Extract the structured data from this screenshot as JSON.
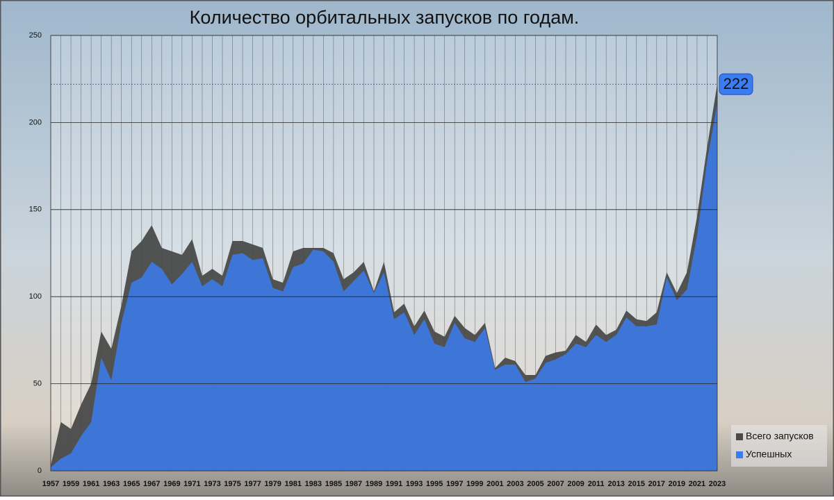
{
  "chart_data": {
    "type": "area",
    "title": "Количество орбитальных запусков по годам.",
    "categories": [
      "1957",
      null,
      "1959",
      null,
      "1961",
      null,
      "1963",
      null,
      "1965",
      null,
      "1967",
      null,
      "1969",
      null,
      "1971",
      null,
      "1973",
      null,
      "1975",
      null,
      "1977",
      null,
      "1979",
      null,
      "1981",
      null,
      "1983",
      null,
      "1985",
      null,
      "1987",
      null,
      "1989",
      null,
      "1991",
      null,
      "1993",
      null,
      "1995",
      null,
      "1997",
      null,
      "1999",
      null,
      "2001",
      null,
      "2003",
      null,
      "2005",
      null,
      "2007",
      null,
      "2009",
      null,
      "2011",
      null,
      "2013",
      null,
      "2015",
      null,
      "2017",
      null,
      "2019",
      null,
      "2021",
      null,
      "2023"
    ],
    "series": [
      {
        "name": "Всего запусков",
        "color": "#4a4a4a",
        "values": [
          3,
          28,
          24,
          38,
          50,
          80,
          70,
          95,
          126,
          132,
          141,
          128,
          126,
          124,
          133,
          112,
          116,
          112,
          132,
          132,
          130,
          128,
          110,
          108,
          126,
          128,
          128,
          128,
          125,
          110,
          114,
          120,
          103,
          120,
          91,
          96,
          83,
          92,
          80,
          77,
          89,
          82,
          78,
          85,
          59,
          65,
          63,
          55,
          55,
          66,
          68,
          69,
          78,
          74,
          84,
          78,
          81,
          92,
          87,
          86,
          91,
          114,
          102,
          114,
          146,
          186,
          222
        ],
        "value_labels": [
          null,
          null,
          null,
          null,
          null,
          null,
          null,
          null,
          null,
          null,
          null,
          null,
          null,
          null,
          null,
          null,
          null,
          null,
          null,
          null,
          null,
          null,
          null,
          null,
          null,
          null,
          null,
          null,
          null,
          null,
          null,
          null,
          null,
          null,
          null,
          null,
          null,
          null,
          null,
          null,
          null,
          null,
          null,
          null,
          null,
          null,
          null,
          null,
          null,
          null,
          null,
          null,
          null,
          null,
          null,
          null,
          null,
          null,
          null,
          null,
          null,
          null,
          null,
          null,
          null,
          null,
          "222"
        ]
      },
      {
        "name": "Успешных",
        "color": "#3b7cf0",
        "values": [
          2,
          7,
          10,
          20,
          28,
          65,
          52,
          85,
          108,
          111,
          120,
          116,
          107,
          113,
          120,
          106,
          110,
          106,
          124,
          125,
          121,
          122,
          105,
          103,
          117,
          119,
          127,
          126,
          120,
          103,
          109,
          115,
          102,
          114,
          87,
          91,
          78,
          87,
          73,
          71,
          85,
          76,
          74,
          82,
          58,
          61,
          61,
          51,
          53,
          62,
          64,
          67,
          73,
          71,
          78,
          74,
          78,
          88,
          83,
          83,
          84,
          111,
          98,
          104,
          135,
          178,
          211
        ]
      }
    ],
    "ylim": [
      0,
      250
    ],
    "yticks": [
      0,
      50,
      100,
      150,
      200,
      250
    ],
    "grid": true
  }
}
